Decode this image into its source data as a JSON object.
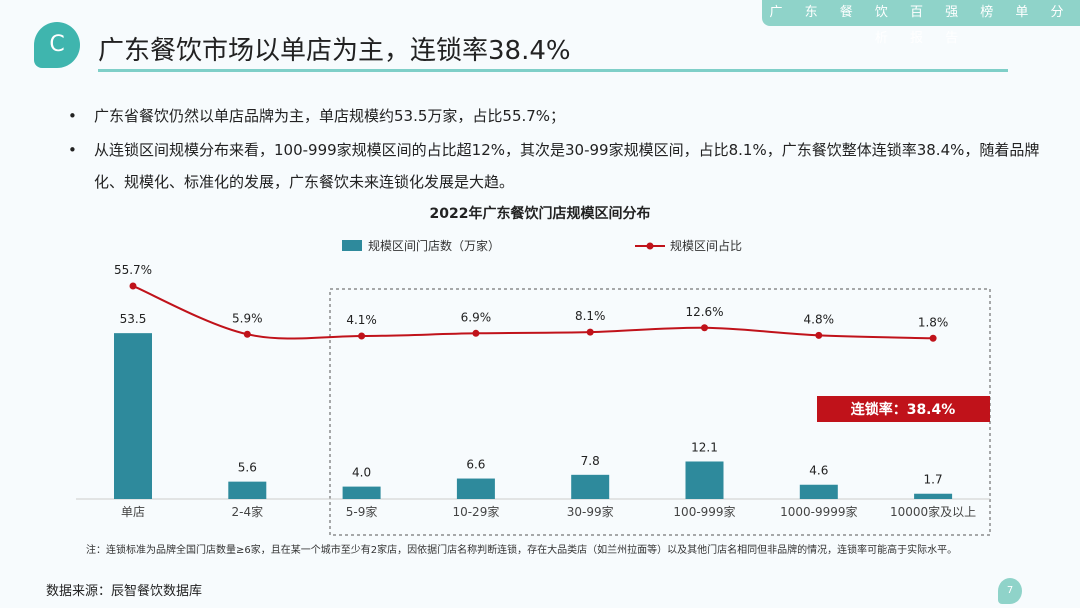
{
  "header": {
    "tag": "广 东 餐 饮 百 强 榜 单 分 析 报 告",
    "logo": "C",
    "title": "广东餐饮市场以单店为主，连锁率38.4%"
  },
  "bullets": [
    "广东省餐饮仍然以单店品牌为主，单店规模约53.5万家，占比55.7%；",
    "从连锁区间规模分布来看，100-999家规模区间的占比超12%，其次是30-99家规模区间，占比8.1%，广东餐饮整体连锁率38.4%，随着品牌化、规模化、标准化的发展，广东餐饮未来连锁化发展是大趋。"
  ],
  "chart_data": {
    "type": "bar+line",
    "title": "2022年广东餐饮门店规模区间分布",
    "categories": [
      "单店",
      "2-4家",
      "5-9家",
      "10-29家",
      "30-99家",
      "100-999家",
      "1000-9999家",
      "10000家及以上"
    ],
    "series": [
      {
        "name": "规模区间门店数（万家）",
        "type": "bar",
        "color": "#2e8a9c",
        "values": [
          53.5,
          5.6,
          4.0,
          6.6,
          7.8,
          12.1,
          4.6,
          1.7
        ],
        "labels": [
          "53.5",
          "5.6",
          "4.0",
          "6.6",
          "7.8",
          "12.1",
          "4.6",
          "1.7"
        ]
      },
      {
        "name": "规模区间占比",
        "type": "line",
        "color": "#c0121a",
        "values": [
          55.7,
          5.9,
          4.1,
          6.9,
          8.1,
          12.6,
          4.8,
          1.8
        ],
        "labels": [
          "55.7%",
          "5.9%",
          "4.1%",
          "6.9%",
          "8.1%",
          "12.6%",
          "4.8%",
          "1.8%"
        ]
      }
    ],
    "annotation": "连锁率：38.4%",
    "legend": "top"
  },
  "footer": {
    "note": "注：连锁标准为品牌全国门店数量≥6家，且在某一个城市至少有2家店，因依据门店名称判断连锁，存在大品类店（如兰州拉面等）以及其他门店名相同但非品牌的情况，连锁率可能高于实际水平。",
    "source": "数据来源：辰智餐饮数据库",
    "page": "7"
  }
}
